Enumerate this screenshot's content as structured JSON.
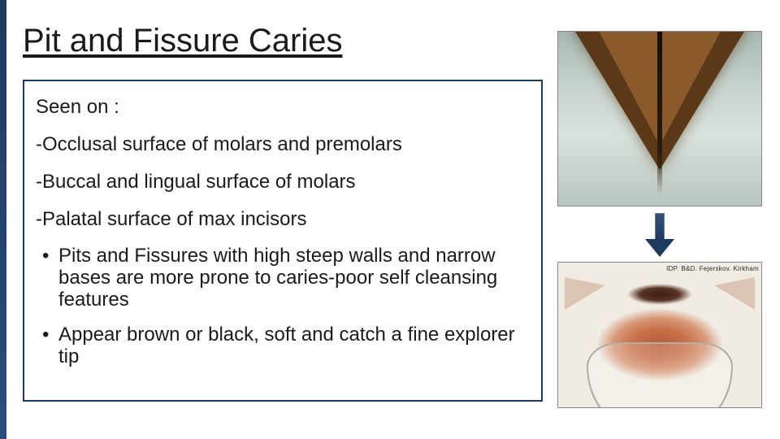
{
  "slide": {
    "title": "Pit and Fissure Caries",
    "seen_on_label": "Seen on :",
    "locations": [
      "-Occlusal surface of molars and premolars",
      "-Buccal and lingual surface of molars",
      "-Palatal surface of max incisors"
    ],
    "bullets": [
      "Pits and Fissures with high steep walls and narrow bases are more prone to caries-poor self cleansing features",
      "Appear brown or black, soft and catch a fine explorer tip"
    ],
    "image_caption": "IDP. B&D. Fejerskov. Kirkham"
  },
  "style": {
    "background": "#ffffff",
    "accent_color": "#1f3a5f",
    "title_fontsize": 40,
    "body_fontsize": 24,
    "title_color": "#1a1a1a",
    "body_color": "#1a1a1a",
    "border_color": "#1f3a5f",
    "caries_color": "#b85a3a",
    "enamel_color": "#c6d2cc",
    "dentin_color": "#8a5a2a"
  }
}
